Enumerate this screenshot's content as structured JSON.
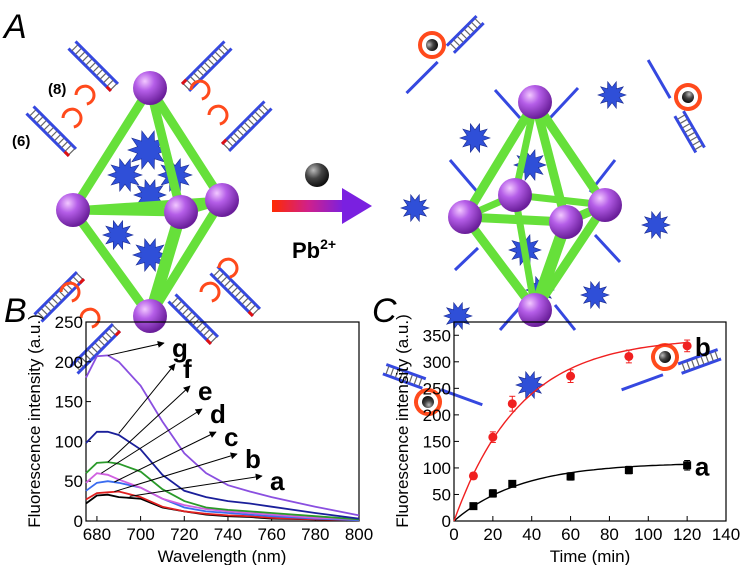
{
  "panel_a": {
    "letter": "A",
    "labels": [
      "(8)",
      "(6)"
    ],
    "reagent": "Pb",
    "reagent_charge": "2+",
    "colors": {
      "rod": "#66e03a",
      "node": "#b04ee0",
      "star": "#2f4fd8",
      "dna": "#3548e0",
      "loop": "#ff4a1c",
      "ion": "#333333"
    }
  },
  "chart_data": [
    {
      "panel": "B",
      "type": "line",
      "xlabel": "Wavelength (nm)",
      "ylabel": "Fluorescence intensity (a.u.)",
      "xlim": [
        675,
        800
      ],
      "ylim": [
        0,
        250
      ],
      "xticks": [
        680,
        700,
        720,
        740,
        760,
        780,
        800
      ],
      "yticks": [
        0,
        50,
        100,
        150,
        200,
        250
      ],
      "grid": false,
      "x": [
        675,
        680,
        685,
        690,
        700,
        710,
        720,
        730,
        740,
        750,
        760,
        780,
        800
      ],
      "series": [
        {
          "name": "a",
          "color": "#000000",
          "values": [
            22,
            32,
            33,
            30,
            28,
            17,
            12,
            8,
            6,
            5,
            3,
            2,
            1
          ]
        },
        {
          "name": "b",
          "color": "#e02020",
          "values": [
            27,
            35,
            36,
            37,
            30,
            18,
            12,
            9,
            7,
            6,
            4,
            2,
            1
          ]
        },
        {
          "name": "c",
          "color": "#3a6cf0",
          "values": [
            38,
            48,
            50,
            48,
            42,
            28,
            17,
            12,
            10,
            8,
            6,
            3,
            1
          ]
        },
        {
          "name": "d",
          "color": "#d060e0",
          "values": [
            48,
            60,
            58,
            52,
            42,
            28,
            20,
            15,
            12,
            10,
            8,
            4,
            2
          ]
        },
        {
          "name": "e",
          "color": "#2a9a2a",
          "values": [
            60,
            73,
            74,
            72,
            62,
            40,
            25,
            17,
            14,
            12,
            10,
            6,
            2
          ]
        },
        {
          "name": "f",
          "color": "#1a1f9a",
          "values": [
            98,
            112,
            112,
            108,
            90,
            58,
            38,
            30,
            25,
            22,
            18,
            10,
            3
          ]
        },
        {
          "name": "g",
          "color": "#8a4fe0",
          "values": [
            180,
            207,
            208,
            200,
            170,
            125,
            85,
            60,
            45,
            37,
            30,
            18,
            7
          ]
        }
      ]
    },
    {
      "panel": "C",
      "type": "scatter",
      "xlabel": "Time (min)",
      "ylabel": "Fluorescence intensity (a.u.)",
      "xlim": [
        0,
        140
      ],
      "ylim": [
        0,
        375
      ],
      "xticks": [
        0,
        20,
        40,
        60,
        80,
        100,
        120,
        140
      ],
      "yticks": [
        0,
        50,
        100,
        150,
        200,
        250,
        300,
        350
      ],
      "grid": false,
      "fit_lines": true,
      "series": [
        {
          "name": "a",
          "color": "#000000",
          "marker": "square",
          "x": [
            10,
            20,
            30,
            60,
            90,
            120
          ],
          "values": [
            28,
            52,
            70,
            84,
            96,
            105
          ],
          "errors": [
            4,
            7,
            5,
            7,
            7,
            9
          ]
        },
        {
          "name": "b",
          "color": "#f02020",
          "marker": "circle",
          "x": [
            10,
            20,
            30,
            60,
            90,
            120
          ],
          "values": [
            85,
            158,
            221,
            273,
            310,
            330
          ],
          "errors": [
            6,
            10,
            14,
            12,
            12,
            11
          ]
        }
      ]
    }
  ]
}
